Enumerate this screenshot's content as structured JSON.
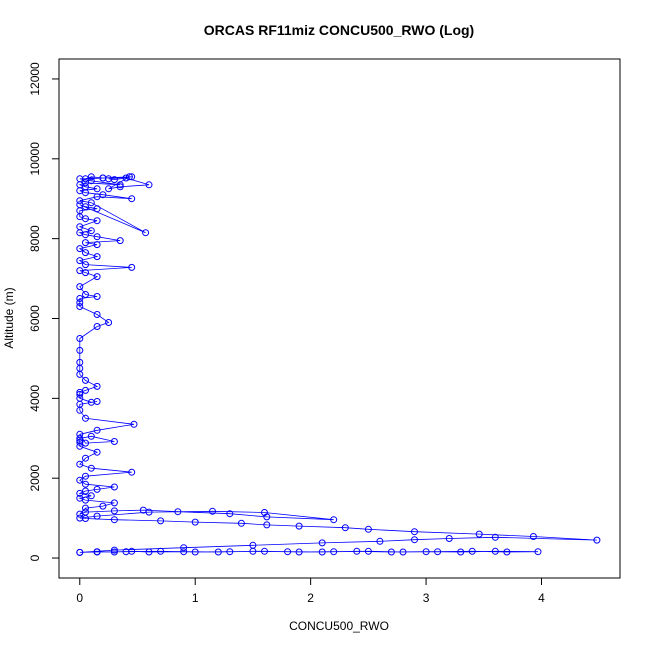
{
  "chart_data": {
    "type": "line",
    "title": "ORCAS RF11miz CONCU500_RWO (Log)",
    "xlabel": "CONCU500_RWO",
    "ylabel": "Altitude (m)",
    "xlim": [
      -0.18,
      4.68
    ],
    "ylim": [
      -500,
      12500
    ],
    "xticks": [
      0,
      1,
      2,
      3,
      4
    ],
    "yticks": [
      0,
      2000,
      4000,
      6000,
      8000,
      10000,
      12000
    ],
    "grid": false,
    "legend": "none",
    "series_color": "#0000ff",
    "series": [
      {
        "x": [
          0,
          0.15,
          0.3,
          0.45,
          0.6,
          0.9,
          1.2,
          1.5,
          1.8,
          2.1,
          2.4,
          2.7,
          3.0,
          3.3,
          3.6,
          3.97,
          3.7,
          3.4,
          3.1,
          2.8,
          2.5,
          2.2,
          1.9,
          1.6,
          1.3,
          1.0,
          0.7,
          0.4,
          0.15,
          0,
          0.3,
          0.9,
          1.5,
          2.1,
          2.6,
          2.9,
          3.2,
          3.6,
          4.48,
          3.93,
          3.46,
          2.9,
          2.5,
          2.3,
          1.9,
          1.62,
          1.4,
          1.0,
          0.7,
          0.3,
          0.05,
          0,
          0.15,
          0.6,
          1.15,
          1.6,
          2.2,
          1.62,
          1.3,
          0.85,
          0.55,
          0.3,
          0.05,
          0,
          0.05,
          0.2,
          0.3,
          0.05,
          0,
          0.1,
          0,
          0.05,
          0.15,
          0.3,
          0.05,
          0,
          0.05,
          0.45,
          0.1,
          0,
          0.05,
          0.15,
          0,
          0,
          0,
          0,
          0.1,
          0.3,
          0.05,
          0,
          0.15,
          0.47,
          0.05,
          0,
          0,
          0.15,
          0.1,
          0,
          0,
          0,
          0.05,
          0.15,
          0.05,
          0,
          0,
          0,
          0,
          0,
          0.15,
          0.25,
          0.15,
          0,
          0,
          0,
          0.15,
          0.05,
          0,
          0.15,
          0.05,
          0,
          0.45,
          0.05,
          0,
          0.15,
          0.05,
          0,
          0.15,
          0.05,
          0.35,
          0.15,
          0.05,
          0,
          0.1,
          0,
          0.15,
          0.05,
          0,
          0,
          0.15,
          0.05,
          0,
          0.57,
          0.1,
          0,
          0.15,
          0.45,
          0.2,
          0.05,
          0,
          0.15,
          0.05,
          0,
          0.05,
          0.35,
          0.1,
          0,
          0.2,
          0.1,
          0.05,
          0.45,
          0.25,
          0.3,
          0.4,
          0.6,
          0.35,
          0.25,
          0.43,
          0.2
        ],
        "y": [
          140,
          160,
          150,
          170,
          150,
          160,
          150,
          170,
          160,
          150,
          170,
          150,
          160,
          150,
          170,
          160,
          150,
          170,
          160,
          150,
          170,
          160,
          150,
          170,
          160,
          150,
          170,
          160,
          150,
          140,
          200,
          260,
          320,
          380,
          420,
          460,
          490,
          520,
          450,
          540,
          600,
          660,
          720,
          760,
          800,
          830,
          870,
          900,
          930,
          960,
          990,
          1000,
          1050,
          1150,
          1170,
          1140,
          960,
          1030,
          1110,
          1160,
          1200,
          1180,
          1150,
          1100,
          1250,
          1300,
          1380,
          1450,
          1500,
          1560,
          1620,
          1680,
          1720,
          1780,
          1850,
          1950,
          2050,
          2150,
          2250,
          2350,
          2500,
          2650,
          2800,
          2900,
          2950,
          3000,
          3050,
          2920,
          2880,
          3100,
          3200,
          3350,
          3500,
          3700,
          3850,
          3920,
          3900,
          4000,
          4100,
          4150,
          4200,
          4300,
          4450,
          4600,
          4750,
          4900,
          5200,
          5500,
          5800,
          5900,
          6100,
          6300,
          6400,
          6500,
          6550,
          6600,
          6800,
          7050,
          7150,
          7200,
          7280,
          7350,
          7450,
          7550,
          7650,
          7750,
          7850,
          7900,
          7950,
          8050,
          8100,
          8150,
          8200,
          8300,
          8450,
          8500,
          8550,
          8700,
          8750,
          8800,
          8850,
          8150,
          8900,
          8950,
          9050,
          9000,
          9100,
          9150,
          9200,
          9250,
          9300,
          9350,
          9400,
          9350,
          9450,
          9500,
          9520,
          9550,
          9500,
          9550,
          9500,
          9480,
          9520,
          9350,
          9300,
          9250,
          9550,
          9520
        ]
      }
    ]
  }
}
